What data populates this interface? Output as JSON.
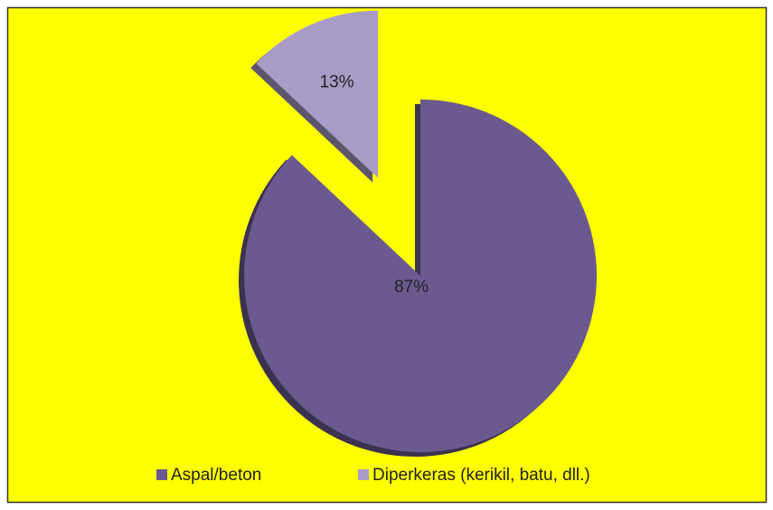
{
  "chart_data": {
    "type": "pie",
    "categories": [
      "Aspal/beton",
      "Diperkeras (kerikil, batu, dll.)"
    ],
    "values": [
      87,
      13
    ],
    "value_labels": [
      "87%",
      "13%"
    ],
    "colors": [
      "#6b5a8f",
      "#a89cc6"
    ],
    "exploded": [
      false,
      true
    ],
    "legend": "bottom"
  }
}
